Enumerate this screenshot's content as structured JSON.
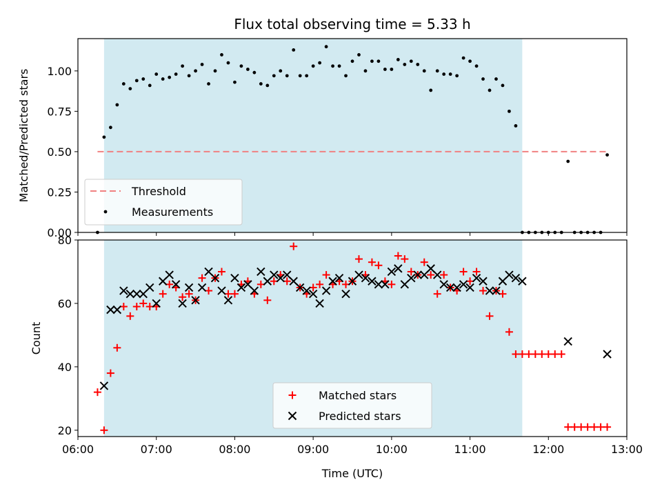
{
  "chart_data": [
    {
      "type": "scatter",
      "title": "Flux total observing time = 5.33 h",
      "ylabel": "Matched/Predicted stars",
      "xlim": [
        "06:00",
        "13:00"
      ],
      "ylim": [
        0,
        1.2
      ],
      "yticks": [
        "0.00",
        "0.25",
        "0.50",
        "0.75",
        "1.00"
      ],
      "observing_window": [
        "06:20",
        "11:40"
      ],
      "window_color": "#add8e6",
      "threshold": {
        "name": "Threshold",
        "value": 0.5,
        "x_start": "06:15",
        "x_end": "12:45",
        "color": "#f08080"
      },
      "series": [
        {
          "name": "Measurements",
          "color": "#000000",
          "x": [
            "06:15",
            "06:20",
            "06:25",
            "06:30",
            "06:35",
            "06:40",
            "06:45",
            "06:50",
            "06:55",
            "07:00",
            "07:05",
            "07:10",
            "07:15",
            "07:20",
            "07:25",
            "07:30",
            "07:35",
            "07:40",
            "07:45",
            "07:50",
            "07:55",
            "08:00",
            "08:05",
            "08:10",
            "08:15",
            "08:20",
            "08:25",
            "08:30",
            "08:35",
            "08:40",
            "08:45",
            "08:50",
            "08:55",
            "09:00",
            "09:05",
            "09:10",
            "09:15",
            "09:20",
            "09:25",
            "09:30",
            "09:35",
            "09:40",
            "09:45",
            "09:50",
            "09:55",
            "10:00",
            "10:05",
            "10:10",
            "10:15",
            "10:20",
            "10:25",
            "10:30",
            "10:35",
            "10:40",
            "10:45",
            "10:50",
            "10:55",
            "11:00",
            "11:05",
            "11:10",
            "11:15",
            "11:20",
            "11:25",
            "11:30",
            "11:35",
            "11:40",
            "11:45",
            "11:50",
            "11:55",
            "12:00",
            "12:05",
            "12:10",
            "12:15",
            "12:20",
            "12:25",
            "12:30",
            "12:35",
            "12:40",
            "12:45"
          ],
          "y": [
            0.0,
            0.59,
            0.65,
            0.79,
            0.92,
            0.89,
            0.94,
            0.95,
            0.91,
            0.98,
            0.95,
            0.96,
            0.98,
            1.03,
            0.97,
            1.0,
            1.04,
            0.92,
            1.0,
            1.1,
            1.05,
            0.93,
            1.03,
            1.01,
            0.99,
            0.92,
            0.91,
            0.97,
            1.0,
            0.97,
            1.13,
            0.97,
            0.97,
            1.03,
            1.05,
            1.15,
            1.03,
            1.03,
            0.97,
            1.06,
            1.1,
            1.0,
            1.06,
            1.06,
            1.01,
            1.01,
            1.07,
            1.04,
            1.06,
            1.04,
            1.0,
            0.88,
            1.0,
            0.98,
            0.98,
            0.97,
            1.08,
            1.06,
            1.03,
            0.95,
            0.88,
            0.95,
            0.91,
            0.75,
            0.66,
            0.0,
            0.0,
            0.0,
            0.0,
            0.0,
            0.0,
            0.0,
            0.44,
            0.0,
            0.0,
            0.0,
            0.0,
            0.0,
            0.48
          ]
        }
      ],
      "legend": {
        "placement": "lower-left",
        "entries": [
          "Threshold",
          "Measurements"
        ]
      }
    },
    {
      "type": "scatter",
      "xlabel": "Time (UTC)",
      "ylabel": "Count",
      "xlim": [
        "06:00",
        "13:00"
      ],
      "ylim": [
        18,
        80
      ],
      "xticks": [
        "06:00",
        "07:00",
        "08:00",
        "09:00",
        "10:00",
        "11:00",
        "12:00",
        "13:00"
      ],
      "yticks": [
        "20",
        "40",
        "60",
        "80"
      ],
      "observing_window": [
        "06:20",
        "11:40"
      ],
      "series": [
        {
          "name": "Matched stars",
          "marker": "plus",
          "color": "#ff0000",
          "x": [
            "06:15",
            "06:20",
            "06:25",
            "06:30",
            "06:35",
            "06:40",
            "06:45",
            "06:50",
            "06:55",
            "07:00",
            "07:05",
            "07:10",
            "07:15",
            "07:20",
            "07:25",
            "07:30",
            "07:35",
            "07:40",
            "07:45",
            "07:50",
            "07:55",
            "08:00",
            "08:05",
            "08:10",
            "08:15",
            "08:20",
            "08:25",
            "08:30",
            "08:35",
            "08:40",
            "08:45",
            "08:50",
            "08:55",
            "09:00",
            "09:05",
            "09:10",
            "09:15",
            "09:20",
            "09:25",
            "09:30",
            "09:35",
            "09:40",
            "09:45",
            "09:50",
            "09:55",
            "10:00",
            "10:05",
            "10:10",
            "10:15",
            "10:20",
            "10:25",
            "10:30",
            "10:35",
            "10:40",
            "10:45",
            "10:50",
            "10:55",
            "11:00",
            "11:05",
            "11:10",
            "11:15",
            "11:20",
            "11:25",
            "11:30",
            "11:35",
            "11:40",
            "11:45",
            "11:50",
            "11:55",
            "12:00",
            "12:05",
            "12:10",
            "12:15",
            "12:20",
            "12:25",
            "12:30",
            "12:35",
            "12:40",
            "12:45"
          ],
          "y": [
            32,
            20,
            38,
            46,
            59,
            56,
            59,
            60,
            59,
            59,
            63,
            66,
            65,
            62,
            63,
            61,
            68,
            64,
            68,
            70,
            63,
            63,
            66,
            67,
            63,
            66,
            61,
            67,
            69,
            67,
            78,
            65,
            63,
            65,
            66,
            69,
            66,
            67,
            66,
            67,
            74,
            69,
            73,
            72,
            67,
            66,
            75,
            74,
            70,
            69,
            73,
            69,
            63,
            69,
            65,
            64,
            70,
            67,
            70,
            64,
            56,
            64,
            63,
            51,
            44,
            44,
            44,
            44,
            44,
            44,
            44,
            44,
            21,
            21,
            21,
            21,
            21,
            21,
            21
          ]
        },
        {
          "name": "Predicted stars",
          "marker": "x",
          "color": "#000000",
          "x": [
            "06:20",
            "06:25",
            "06:30",
            "06:35",
            "06:40",
            "06:45",
            "06:50",
            "06:55",
            "07:00",
            "07:05",
            "07:10",
            "07:15",
            "07:20",
            "07:25",
            "07:30",
            "07:35",
            "07:40",
            "07:45",
            "07:50",
            "07:55",
            "08:00",
            "08:05",
            "08:10",
            "08:15",
            "08:20",
            "08:25",
            "08:30",
            "08:35",
            "08:40",
            "08:45",
            "08:50",
            "08:55",
            "09:00",
            "09:05",
            "09:10",
            "09:15",
            "09:20",
            "09:25",
            "09:30",
            "09:35",
            "09:40",
            "09:45",
            "09:50",
            "09:55",
            "10:00",
            "10:05",
            "10:10",
            "10:15",
            "10:20",
            "10:25",
            "10:30",
            "10:35",
            "10:40",
            "10:45",
            "10:50",
            "10:55",
            "11:00",
            "11:05",
            "11:10",
            "11:15",
            "11:20",
            "11:25",
            "11:30",
            "11:35",
            "11:40",
            "12:15",
            "12:45"
          ],
          "y": [
            34,
            58,
            58,
            64,
            63,
            63,
            63,
            65,
            60,
            67,
            69,
            66,
            60,
            65,
            61,
            65,
            70,
            68,
            64,
            61,
            68,
            65,
            66,
            64,
            70,
            67,
            69,
            68,
            69,
            67,
            65,
            64,
            63,
            60,
            64,
            67,
            68,
            63,
            67,
            69,
            68,
            67,
            66,
            66,
            70,
            71,
            66,
            68,
            69,
            69,
            71,
            69,
            66,
            65,
            65,
            66,
            65,
            68,
            67,
            64,
            64,
            67,
            69,
            68,
            67,
            48,
            44
          ]
        }
      ],
      "legend": {
        "placement": "lower-center",
        "entries": [
          "Matched stars",
          "Predicted stars"
        ]
      }
    }
  ]
}
